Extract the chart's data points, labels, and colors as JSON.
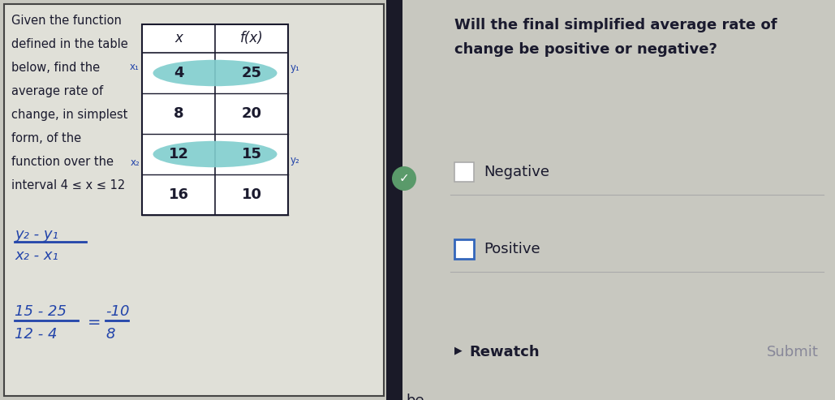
{
  "bg_color": "#c8c8c0",
  "left_panel_bg": "#e0e0d8",
  "left_border_color": "#444444",
  "right_panel_bg": "#c8c8c0",
  "left_text_lines": [
    "Given the function",
    "defined in the table",
    "below, find the",
    "average rate of",
    "change, in simplest",
    "form, of the",
    "function over the",
    "interval 4 ≤ x ≤ 12"
  ],
  "table_headers": [
    "x",
    "f(x)"
  ],
  "table_data": [
    [
      4,
      25
    ],
    [
      8,
      20
    ],
    [
      12,
      15
    ],
    [
      16,
      10
    ]
  ],
  "highlighted_rows": [
    0,
    2
  ],
  "highlight_color": "#80cece",
  "formula_top": "y₂ - y₁",
  "formula_bottom": "x₂ - x₁",
  "calc_top": "15 - 25",
  "calc_bottom": "12 - 4",
  "calc_result_top": "-10",
  "calc_result_bottom": "8",
  "right_question_line1": "Will the final simplified average rate of",
  "right_question_line2": "change be positive or negative?",
  "right_option1": "Negative",
  "right_option2": "Positive",
  "right_footer1": "Rewatch",
  "right_footer2": "Submit",
  "dark_divider_color": "#1a1a28",
  "text_color_blue": "#2244aa",
  "text_color_dark": "#1a1a2e",
  "text_color_gray": "#888899",
  "annotation_x1": "x₁",
  "annotation_y1": "y₁",
  "annotation_x2": "x₂",
  "annotation_y2": "y₂"
}
